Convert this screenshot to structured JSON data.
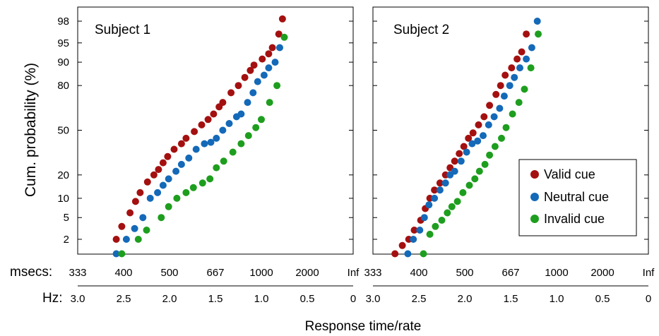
{
  "chart_data": [
    {
      "type": "scatter",
      "title": "Subject 1",
      "ylabel": "Cum. probability (%)",
      "y_scale": "probit",
      "yticks": [
        2,
        5,
        10,
        20,
        50,
        80,
        90,
        95,
        98
      ],
      "xlim_hz": [
        3.0,
        0
      ],
      "xticks_msecs": [
        "333",
        "400",
        "500",
        "667",
        "1000",
        "2000",
        "Inf"
      ],
      "xticks_hz": [
        "3.0",
        "2.5",
        "2.0",
        "1.5",
        "1.0",
        "0.5",
        "0"
      ],
      "series": [
        {
          "name": "Valid cue",
          "color": "#a41010",
          "x": [
            2.58,
            2.52,
            2.43,
            2.37,
            2.32,
            2.24,
            2.17,
            2.12,
            2.07,
            2.02,
            1.95,
            1.87,
            1.82,
            1.73,
            1.65,
            1.58,
            1.52,
            1.46,
            1.42,
            1.33,
            1.25,
            1.18,
            1.12,
            1.08,
            0.99,
            0.92,
            0.88,
            0.81,
            0.77
          ],
          "y": [
            2.0,
            3.5,
            6.0,
            9.0,
            12.0,
            16.5,
            20.0,
            23.0,
            27.0,
            31.0,
            36.0,
            40.0,
            44.0,
            49.0,
            54.0,
            58.0,
            62.0,
            67.0,
            70.0,
            76.0,
            80.0,
            84.0,
            87.0,
            89.0,
            91.0,
            92.5,
            94.0,
            96.5,
            98.2
          ]
        },
        {
          "name": "Neutral cue",
          "color": "#1469b8",
          "x": [
            2.58,
            2.47,
            2.38,
            2.29,
            2.21,
            2.13,
            2.07,
            2.01,
            1.93,
            1.87,
            1.79,
            1.71,
            1.62,
            1.55,
            1.49,
            1.42,
            1.35,
            1.27,
            1.22,
            1.15,
            1.09,
            1.04,
            0.97,
            0.92,
            0.85,
            0.8
          ],
          "y": [
            1.0,
            2.0,
            3.2,
            5.0,
            10.0,
            12.0,
            15.0,
            18.0,
            22.0,
            26.0,
            30.0,
            36.0,
            40.0,
            41.0,
            44.0,
            50.0,
            55.0,
            60.0,
            62.0,
            70.0,
            76.0,
            82.0,
            85.0,
            88.0,
            90.0,
            94.0
          ]
        },
        {
          "name": "Invalid cue",
          "color": "#1e9e1e",
          "x": [
            2.52,
            2.34,
            2.25,
            2.09,
            2.01,
            1.92,
            1.82,
            1.74,
            1.64,
            1.56,
            1.49,
            1.41,
            1.31,
            1.22,
            1.14,
            1.06,
            1.0,
            0.91,
            0.83,
            0.75
          ],
          "y": [
            1.0,
            2.0,
            3.0,
            5.0,
            7.5,
            10.0,
            12.0,
            14.0,
            16.0,
            18.0,
            24.0,
            28.0,
            34.0,
            40.0,
            46.0,
            52.0,
            58.0,
            70.0,
            80.0,
            96.0
          ]
        }
      ]
    },
    {
      "type": "scatter",
      "title": "Subject 2",
      "y_scale": "probit",
      "yticks": [
        2,
        5,
        10,
        20,
        50,
        80,
        90,
        95,
        98
      ],
      "xlim_hz": [
        3.0,
        0
      ],
      "xticks_msecs": [
        "333",
        "400",
        "500",
        "667",
        "1000",
        "2000",
        "Inf"
      ],
      "xticks_hz": [
        "3.0",
        "2.5",
        "2.0",
        "1.5",
        "1.0",
        "0.5",
        "0"
      ],
      "series": [
        {
          "name": "Valid cue",
          "color": "#a41010",
          "x": [
            2.76,
            2.68,
            2.61,
            2.55,
            2.48,
            2.43,
            2.38,
            2.33,
            2.27,
            2.21,
            2.16,
            2.11,
            2.06,
            2.01,
            1.96,
            1.91,
            1.85,
            1.79,
            1.73,
            1.66,
            1.61,
            1.56,
            1.49,
            1.43,
            1.38,
            1.33
          ],
          "y": [
            1.0,
            1.5,
            2.0,
            3.0,
            4.5,
            7.0,
            10.0,
            13.0,
            16.0,
            20.0,
            24.0,
            28.0,
            33.0,
            38.0,
            44.0,
            48.0,
            54.0,
            60.0,
            68.0,
            75.0,
            80.0,
            85.0,
            88.0,
            91.0,
            93.0,
            96.5
          ]
        },
        {
          "name": "Neutral cue",
          "color": "#1469b8",
          "x": [
            2.62,
            2.56,
            2.49,
            2.44,
            2.39,
            2.33,
            2.27,
            2.21,
            2.16,
            2.11,
            2.04,
            1.98,
            1.92,
            1.86,
            1.8,
            1.74,
            1.68,
            1.62,
            1.57,
            1.51,
            1.46,
            1.4,
            1.33,
            1.27,
            1.21
          ],
          "y": [
            1.0,
            2.0,
            3.0,
            5.0,
            8.0,
            10.0,
            13.0,
            16.0,
            20.0,
            22.0,
            28.0,
            34.0,
            40.0,
            42.0,
            46.0,
            54.0,
            60.0,
            66.0,
            74.0,
            80.0,
            84.0,
            88.0,
            91.0,
            94.0,
            98.0
          ]
        },
        {
          "name": "Invalid cue",
          "color": "#1e9e1e",
          "x": [
            2.45,
            2.38,
            2.32,
            2.25,
            2.19,
            2.14,
            2.08,
            2.02,
            1.95,
            1.89,
            1.84,
            1.78,
            1.73,
            1.67,
            1.6,
            1.55,
            1.48,
            1.41,
            1.35,
            1.28,
            1.2
          ],
          "y": [
            1.0,
            2.5,
            3.5,
            4.5,
            6.0,
            7.5,
            9.0,
            12.0,
            15.0,
            18.0,
            22.0,
            26.0,
            32.0,
            38.0,
            44.0,
            52.0,
            62.0,
            70.0,
            78.0,
            88.0,
            96.5
          ]
        }
      ]
    }
  ],
  "legend": {
    "items": [
      {
        "label": "Valid cue",
        "color": "#a41010"
      },
      {
        "label": "Neutral cue",
        "color": "#1469b8"
      },
      {
        "label": "Invalid cue",
        "color": "#1e9e1e"
      }
    ],
    "placement": "lower-right of Subject 2 panel"
  },
  "bottom_axis": {
    "msecs_label": "msecs:",
    "hz_label": "Hz:",
    "xlabel": "Response time/rate"
  }
}
